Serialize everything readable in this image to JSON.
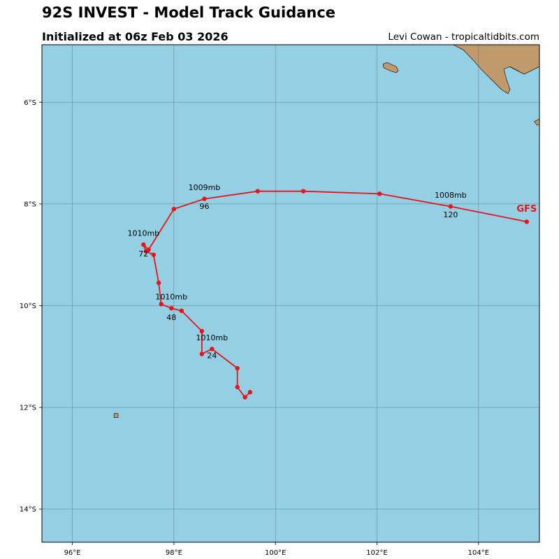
{
  "header": {
    "title": "92S INVEST - Model Track Guidance",
    "subtitle": "Initialized at 06z Feb 03 2026",
    "credit": "Levi Cowan - tropicaltidbits.com"
  },
  "colors": {
    "ocean": "#94cfe3",
    "land": "#c19a6b",
    "track": "#e8141c",
    "grid": "#3f5f6b"
  },
  "map": {
    "lon_range": [
      95.4,
      105.2
    ],
    "lat_range": [
      -14.65,
      -4.87
    ],
    "lon_ticks": [
      {
        "value": 96,
        "label": "96°E"
      },
      {
        "value": 98,
        "label": "98°E"
      },
      {
        "value": 100,
        "label": "100°E"
      },
      {
        "value": 102,
        "label": "102°E"
      },
      {
        "value": 104,
        "label": "104°E"
      }
    ],
    "lat_ticks": [
      {
        "value": -6,
        "label": "6°S"
      },
      {
        "value": -8,
        "label": "8°S"
      },
      {
        "value": -10,
        "label": "10°S"
      },
      {
        "value": -12,
        "label": "12°S"
      },
      {
        "value": -14,
        "label": "14°S"
      }
    ],
    "land": [
      {
        "name": "sumatra-coast",
        "coords": [
          [
            103.5,
            -4.87
          ],
          [
            105.2,
            -4.87
          ],
          [
            105.2,
            -5.3
          ],
          [
            104.9,
            -5.45
          ],
          [
            104.7,
            -5.35
          ],
          [
            104.35,
            -5.15
          ],
          [
            104.25,
            -5.0
          ],
          [
            104.0,
            -4.93
          ],
          [
            103.8,
            -4.87
          ]
        ]
      },
      {
        "name": "sumatra-south-shore",
        "coords": [
          [
            103.5,
            -4.87
          ],
          [
            103.7,
            -4.97
          ],
          [
            103.9,
            -5.18
          ],
          [
            104.05,
            -5.35
          ],
          [
            104.25,
            -5.55
          ],
          [
            104.45,
            -5.75
          ],
          [
            104.58,
            -5.83
          ],
          [
            104.62,
            -5.75
          ],
          [
            104.55,
            -5.55
          ],
          [
            104.5,
            -5.35
          ],
          [
            104.62,
            -5.3
          ],
          [
            104.9,
            -5.45
          ],
          [
            105.2,
            -5.3
          ],
          [
            105.2,
            -4.87
          ]
        ]
      },
      {
        "name": "enggano-island",
        "coords": [
          [
            102.12,
            -5.25
          ],
          [
            102.2,
            -5.22
          ],
          [
            102.38,
            -5.3
          ],
          [
            102.42,
            -5.38
          ],
          [
            102.38,
            -5.42
          ],
          [
            102.25,
            -5.38
          ],
          [
            102.13,
            -5.32
          ]
        ]
      },
      {
        "name": "java-tip",
        "coords": [
          [
            105.2,
            -6.33
          ],
          [
            105.1,
            -6.38
          ],
          [
            105.15,
            -6.45
          ],
          [
            105.2,
            -6.45
          ]
        ]
      },
      {
        "name": "christmas-island",
        "coords": [
          [
            96.82,
            -12.12
          ],
          [
            96.9,
            -12.12
          ],
          [
            96.9,
            -12.2
          ],
          [
            96.82,
            -12.2
          ]
        ]
      }
    ]
  },
  "chart_data": {
    "type": "scatter",
    "title": "92S INVEST - Model Track Guidance",
    "subtitle": "Initialized at 06z Feb 03 2026",
    "xlabel": "",
    "ylabel": "",
    "xlim": [
      95.4,
      105.2
    ],
    "ylim": [
      -14.65,
      -4.87
    ],
    "series": [
      {
        "name": "GFS",
        "points": [
          [
            99.5,
            -11.7
          ],
          [
            99.4,
            -11.8
          ],
          [
            99.25,
            -11.6
          ],
          [
            99.25,
            -11.23
          ],
          [
            98.75,
            -10.85
          ],
          [
            98.55,
            -10.95
          ],
          [
            98.55,
            -10.5
          ],
          [
            98.15,
            -10.1
          ],
          [
            97.95,
            -10.05
          ],
          [
            97.75,
            -9.97
          ],
          [
            97.7,
            -9.55
          ],
          [
            97.6,
            -9.0
          ],
          [
            97.45,
            -8.93
          ],
          [
            97.4,
            -8.8
          ],
          [
            97.5,
            -8.9
          ],
          [
            98.0,
            -8.1
          ],
          [
            98.6,
            -7.9
          ],
          [
            99.65,
            -7.75
          ],
          [
            100.55,
            -7.75
          ],
          [
            102.05,
            -7.8
          ],
          [
            103.45,
            -8.05
          ],
          [
            104.95,
            -8.35
          ]
        ]
      }
    ],
    "annotations": [
      {
        "text": "1010mb",
        "lon": 98.75,
        "lat": -10.68
      },
      {
        "text": "24",
        "lon": 98.75,
        "lat": -11.03
      },
      {
        "text": "1010mb",
        "lon": 97.95,
        "lat": -9.88
      },
      {
        "text": "48",
        "lon": 97.95,
        "lat": -10.28
      },
      {
        "text": "1010mb",
        "lon": 97.4,
        "lat": -8.63
      },
      {
        "text": "72",
        "lon": 97.4,
        "lat": -9.03
      },
      {
        "text": "1009mb",
        "lon": 98.6,
        "lat": -7.73
      },
      {
        "text": "96",
        "lon": 98.6,
        "lat": -8.1
      },
      {
        "text": "1008mb",
        "lon": 103.45,
        "lat": -7.88
      },
      {
        "text": "120",
        "lon": 103.45,
        "lat": -8.26
      }
    ],
    "model_labels": [
      {
        "text": "GFS",
        "lon": 104.95,
        "lat": -8.15
      }
    ],
    "grid": true
  }
}
